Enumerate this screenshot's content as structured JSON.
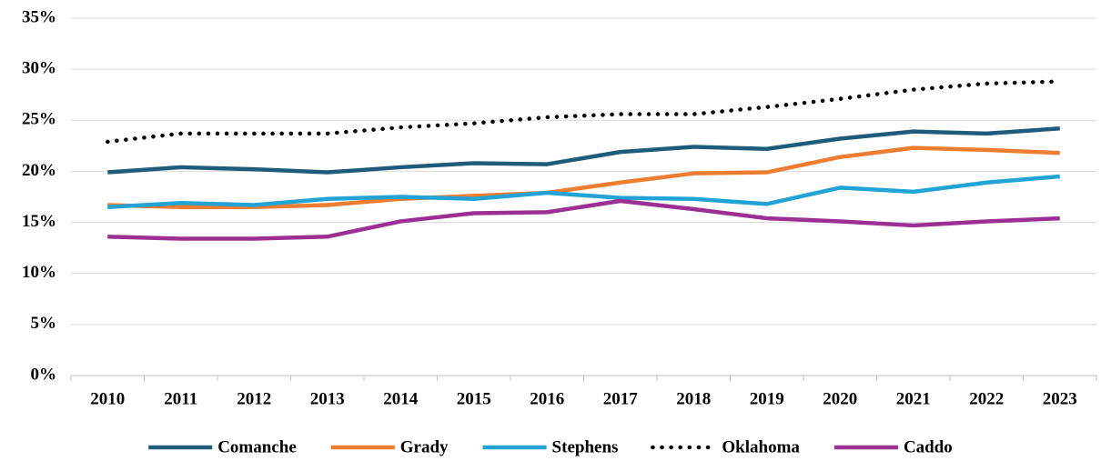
{
  "chart_data": {
    "type": "line",
    "categories": [
      "2010",
      "2011",
      "2012",
      "2013",
      "2014",
      "2015",
      "2016",
      "2017",
      "2018",
      "2019",
      "2020",
      "2021",
      "2022",
      "2023"
    ],
    "series": [
      {
        "name": "Comanche",
        "color": "#1f5c7a",
        "dash": "solid",
        "values": [
          19.9,
          20.4,
          20.2,
          19.9,
          20.4,
          20.8,
          20.7,
          21.9,
          22.4,
          22.2,
          23.2,
          23.9,
          23.7,
          24.2
        ]
      },
      {
        "name": "Grady",
        "color": "#ed7d31",
        "dash": "solid",
        "values": [
          16.7,
          16.5,
          16.5,
          16.7,
          17.3,
          17.6,
          17.9,
          18.9,
          19.8,
          19.9,
          21.4,
          22.3,
          22.1,
          21.8
        ]
      },
      {
        "name": "Stephens",
        "color": "#21a3d6",
        "dash": "solid",
        "values": [
          16.5,
          16.9,
          16.7,
          17.3,
          17.5,
          17.3,
          17.9,
          17.4,
          17.3,
          16.8,
          18.4,
          18.0,
          18.9,
          19.5
        ]
      },
      {
        "name": "Oklahoma",
        "color": "#000000",
        "dash": "dotted",
        "values": [
          22.9,
          23.7,
          23.7,
          23.7,
          24.3,
          24.7,
          25.3,
          25.6,
          25.6,
          26.3,
          27.1,
          28.0,
          28.6,
          28.8
        ]
      },
      {
        "name": "Caddo",
        "color": "#9b2f94",
        "dash": "solid",
        "values": [
          13.6,
          13.4,
          13.4,
          13.6,
          15.1,
          15.9,
          16.0,
          17.1,
          16.3,
          15.4,
          15.1,
          14.7,
          15.1,
          15.4
        ]
      }
    ],
    "ylim": [
      0,
      35
    ],
    "yticks": [
      {
        "value": 0,
        "label": "0%"
      },
      {
        "value": 5,
        "label": "5%"
      },
      {
        "value": 10,
        "label": "10%"
      },
      {
        "value": 15,
        "label": "15%"
      },
      {
        "value": 20,
        "label": "20%"
      },
      {
        "value": 25,
        "label": "25%"
      },
      {
        "value": 30,
        "label": "30%"
      },
      {
        "value": 35,
        "label": "35%"
      }
    ],
    "grid": true,
    "legend": "bottom"
  }
}
